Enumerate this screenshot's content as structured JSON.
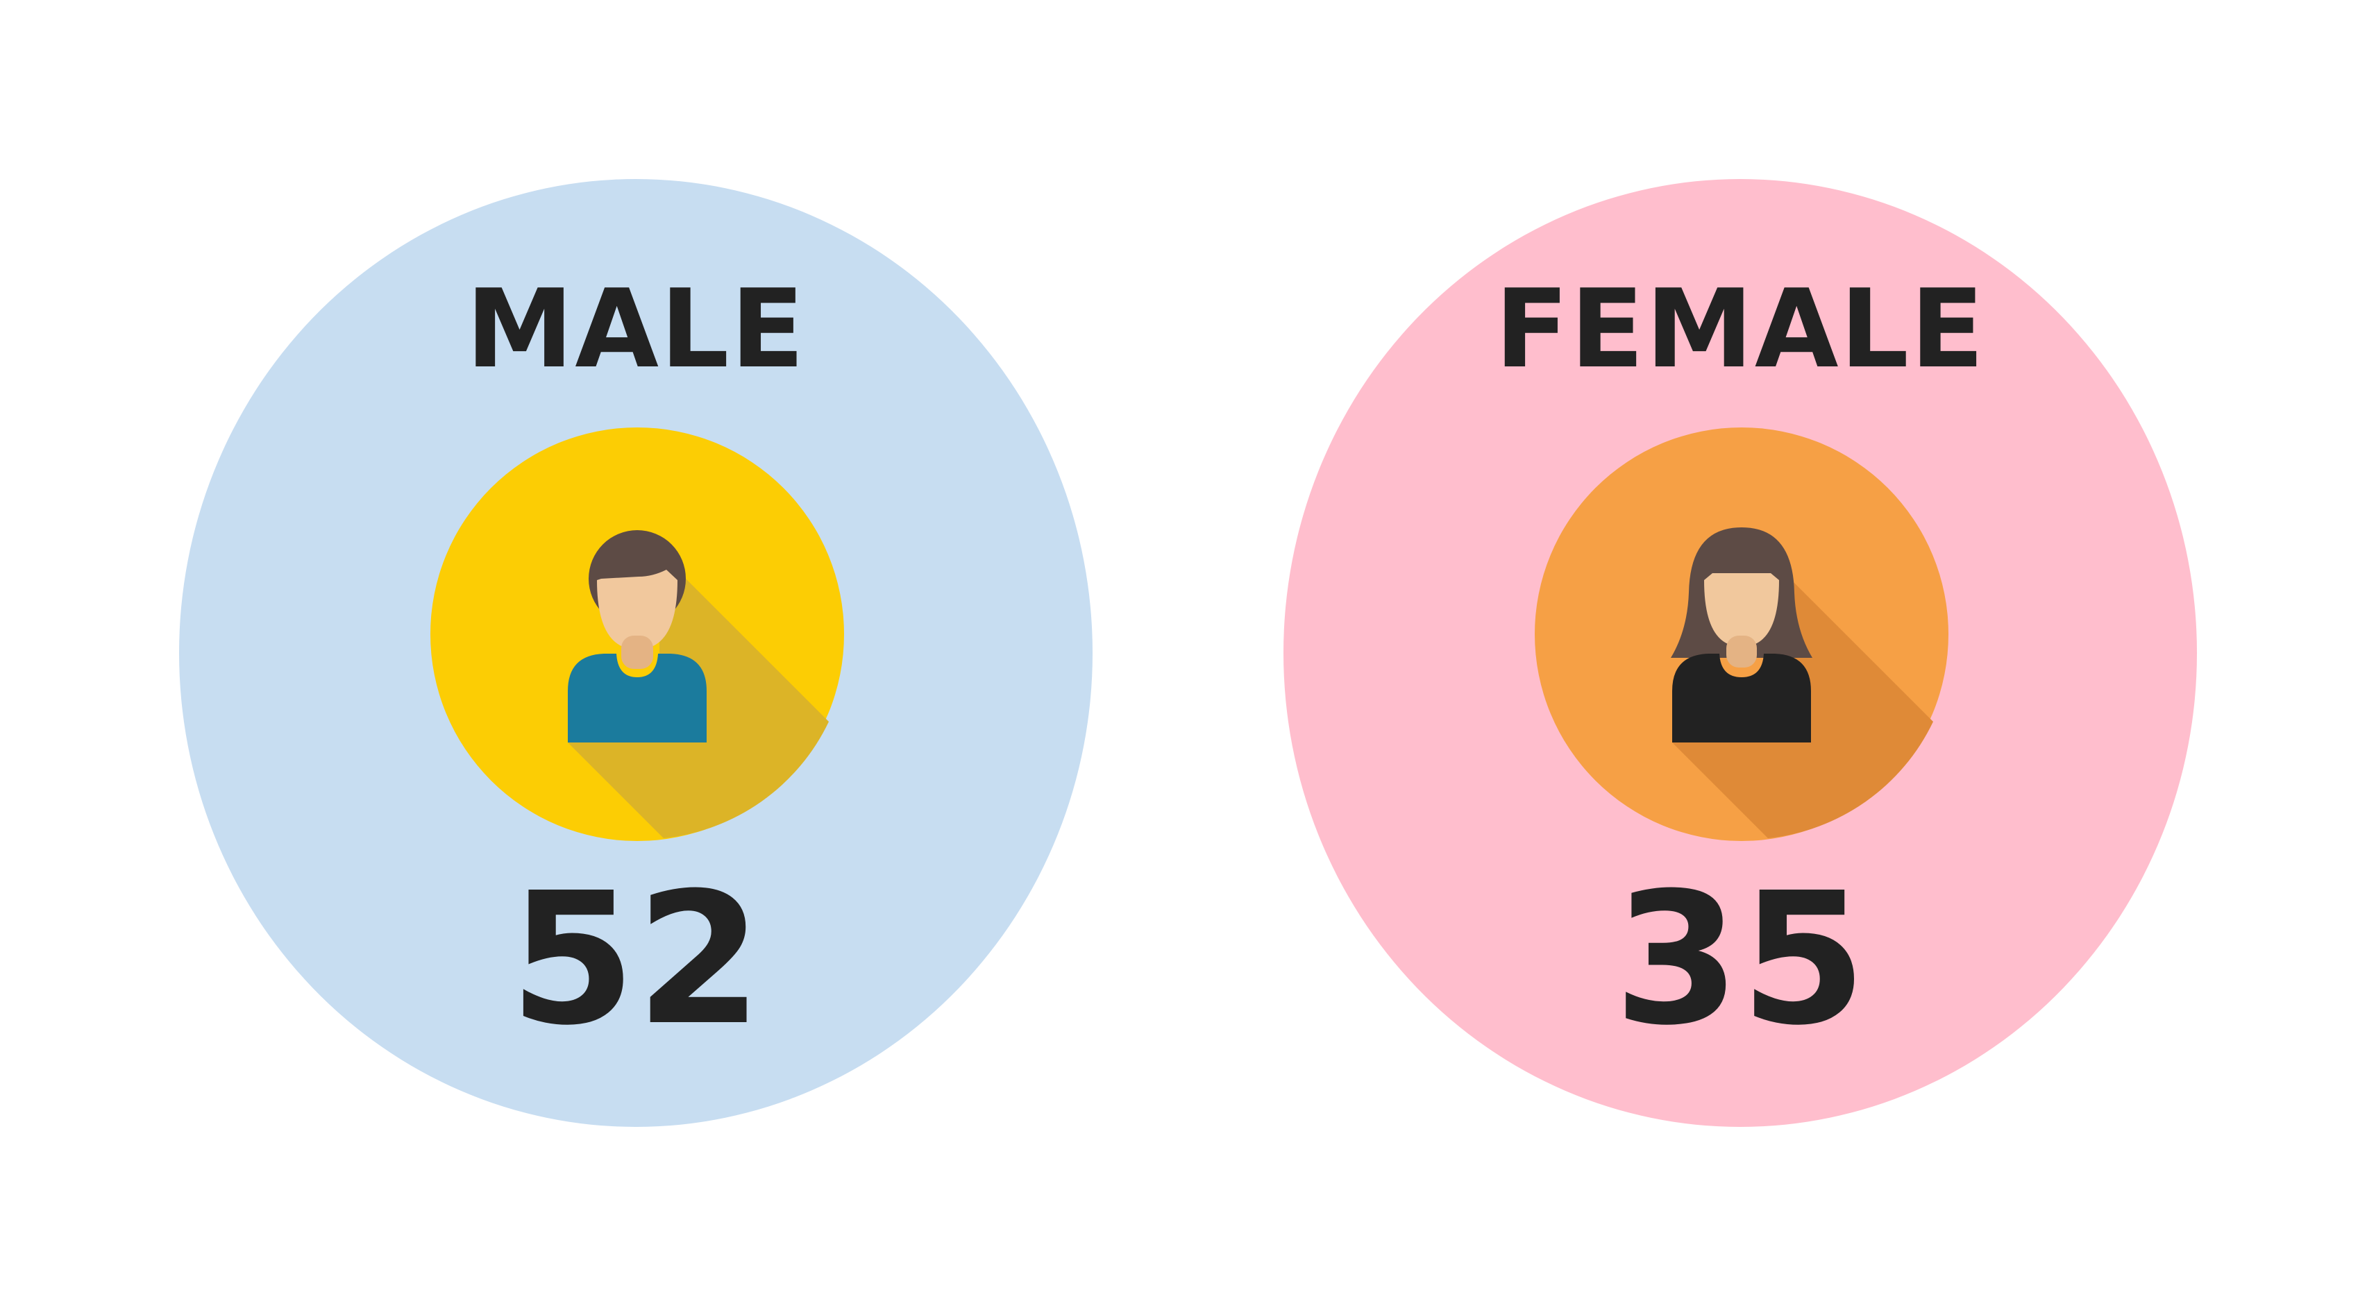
{
  "groups": [
    {
      "label": "MALE",
      "count": "52",
      "icon": "male-user-icon",
      "card_color": "#c7ddf1",
      "badge_color": "#fccd04",
      "badge_shadow": "#dcb427",
      "shirt_color": "#1b7b9d"
    },
    {
      "label": "FEMALE",
      "count": "35",
      "icon": "female-user-icon",
      "card_color": "#ffbecd",
      "badge_color": "#f6a045",
      "badge_shadow": "#df8a37",
      "shirt_color": "#222222"
    }
  ],
  "colors": {
    "hair": "#5d4b45",
    "skin": "#f1c89d",
    "neck": "#e4b384",
    "text": "#222222",
    "background": "#ffffff"
  }
}
